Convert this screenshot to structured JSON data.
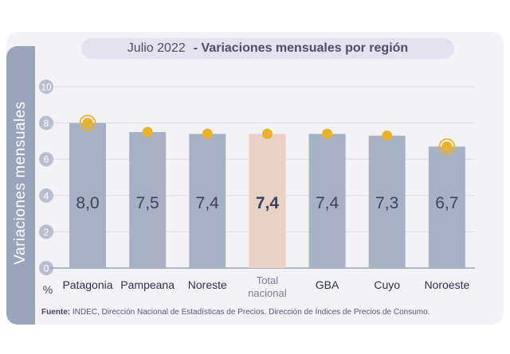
{
  "title": {
    "month": "Julio 2022",
    "subtitle": "- Variaciones mensuales por región"
  },
  "ylabel": "Variaciones mensuales",
  "unit": "%",
  "source": {
    "label": "Fuente:",
    "text": "INDEC, Dirección Nacional de Estadísticas de Precios. Dirección de Índices de Precios de Consumo."
  },
  "colors": {
    "bar": "#a8b1c4",
    "highlight_bar": "#e8d2c8",
    "dot": "#e8b22c",
    "value_text": "#3d4063",
    "tick_circle": "#b9bed0",
    "grid": "#dcdcdc"
  },
  "chart_data": {
    "type": "bar",
    "categories": [
      "Patagonia",
      "Pampeana",
      "Noreste",
      "Total nacional",
      "GBA",
      "Cuyo",
      "Noroeste"
    ],
    "values": [
      8.0,
      7.5,
      7.4,
      7.4,
      7.4,
      7.3,
      6.7
    ],
    "value_labels": [
      "8,0",
      "7,5",
      "7,4",
      "7,4",
      "7,4",
      "7,3",
      "6,7"
    ],
    "highlight": "Total nacional",
    "ringed": [
      "Patagonia",
      "Noroeste"
    ],
    "yticks": [
      0,
      2,
      4,
      6,
      8,
      10
    ],
    "ylim": [
      0,
      10
    ],
    "grid": true
  }
}
